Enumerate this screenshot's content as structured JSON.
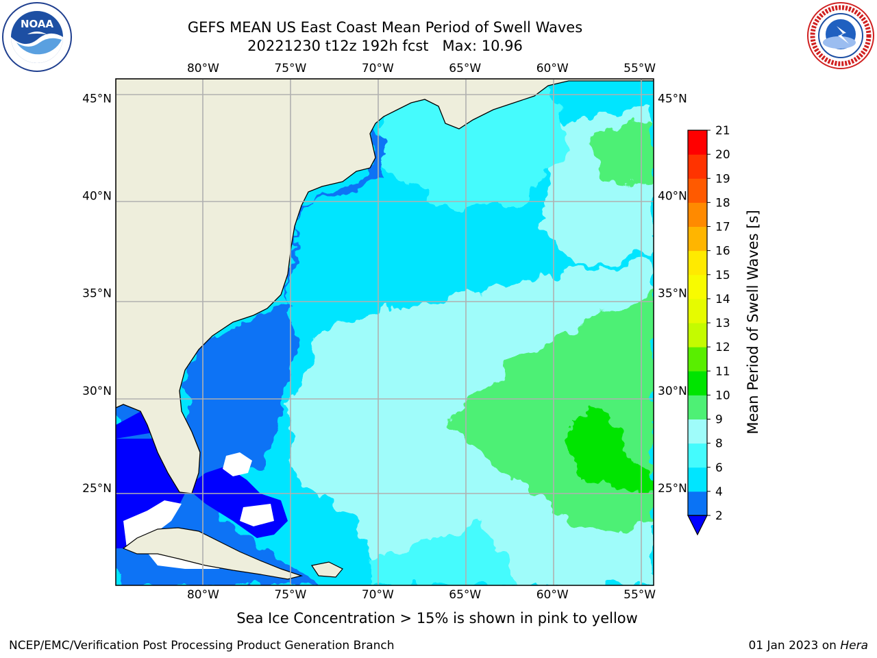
{
  "title": {
    "line1": "GEFS MEAN US East Coast Mean Period of Swell Waves",
    "run": "20221230 t12z 192h fcst",
    "max": "Max: 10.96"
  },
  "logos": {
    "left": {
      "name": "NOAA",
      "icon": "noaa-logo"
    },
    "right": {
      "name": "NATIONAL WEATHER SERVICE",
      "icon": "nws-logo"
    }
  },
  "map": {
    "projection": "equirectangular",
    "lon_range": [
      -85,
      -54.2
    ],
    "lat_range": [
      20,
      46
    ],
    "lon_ticks": [
      "80°W",
      "75°W",
      "70°W",
      "65°W",
      "60°W",
      "55°W"
    ],
    "lat_ticks": [
      "45°N",
      "40°N",
      "35°N",
      "30°N",
      "25°N"
    ],
    "gridlines": true,
    "land_color": "#eeeedc",
    "grid_color": "#b0b0b0"
  },
  "colorbar": {
    "label": "Mean Period of Swell Waves [s]",
    "tick_labels": [
      "2",
      "4",
      "6",
      "8",
      "9",
      "10",
      "11",
      "12",
      "13",
      "14",
      "15",
      "16",
      "17",
      "18",
      "19",
      "20",
      "21"
    ],
    "bins": [
      {
        "from": 2,
        "to": 4,
        "color": "#0a73f5"
      },
      {
        "from": 4,
        "to": 6,
        "color": "#00e5ff"
      },
      {
        "from": 6,
        "to": 8,
        "color": "#44fbfd"
      },
      {
        "from": 8,
        "to": 9,
        "color": "#9ffcfa"
      },
      {
        "from": 9,
        "to": 10,
        "color": "#4ef075"
      },
      {
        "from": 10,
        "to": 11,
        "color": "#00e400"
      },
      {
        "from": 11,
        "to": 12,
        "color": "#59ee00"
      },
      {
        "from": 12,
        "to": 13,
        "color": "#c4fb00"
      },
      {
        "from": 13,
        "to": 14,
        "color": "#e6fb00"
      },
      {
        "from": 14,
        "to": 15,
        "color": "#f8fb00"
      },
      {
        "from": 15,
        "to": 16,
        "color": "#ffea00"
      },
      {
        "from": 16,
        "to": 17,
        "color": "#ffb500"
      },
      {
        "from": 17,
        "to": 18,
        "color": "#ff8a00"
      },
      {
        "from": 18,
        "to": 19,
        "color": "#ff5a00"
      },
      {
        "from": 19,
        "to": 20,
        "color": "#ff3300"
      },
      {
        "from": 20,
        "to": 21,
        "color": "#ff0000"
      }
    ],
    "under_color": "#0000ff"
  },
  "caption": "Sea Ice Concentration > 15% is shown in pink to yellow",
  "footer": {
    "left": "NCEP/EMC/Verification Post Processing Product Generation Branch",
    "date": "01 Jan 2023 on",
    "host": "Hera"
  }
}
